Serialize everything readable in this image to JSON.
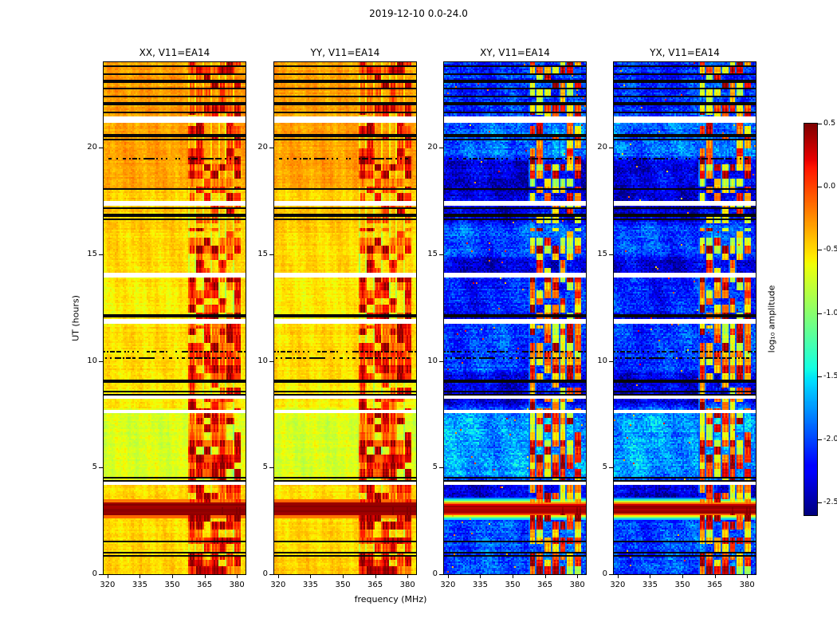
{
  "figure": {
    "title": "2019-12-10 0.0-24.0"
  },
  "chart_data": {
    "type": "heatmap",
    "title": "2019-12-10 0.0-24.0",
    "xlabel": "frequency (MHz)",
    "ylabel": "UT (hours)",
    "x_ticks": [
      320,
      335,
      350,
      365,
      380
    ],
    "y_ticks": [
      0,
      5,
      10,
      15,
      20
    ],
    "x_range": [
      318.2,
      384.0
    ],
    "y_range": [
      0,
      24
    ],
    "grid": false,
    "panels": [
      {
        "id": "xx",
        "title": "XX, V11=EA14",
        "polarization": "XX",
        "group": "parallel",
        "seed": 1
      },
      {
        "id": "yy",
        "title": "YY, V11=EA14",
        "polarization": "YY",
        "group": "parallel",
        "seed": 2
      },
      {
        "id": "xy",
        "title": "XY, V11=EA14",
        "polarization": "XY",
        "group": "cross",
        "seed": 3
      },
      {
        "id": "yx",
        "title": "YX, V11=EA14",
        "polarization": "YX",
        "group": "cross",
        "seed": 4
      }
    ],
    "colorbar": {
      "label": "log₁₀ amplitude",
      "ticks": [
        0.5,
        0.0,
        -0.5,
        -1.0,
        -1.5,
        -2.0,
        -2.5
      ],
      "range": [
        -2.6,
        0.5
      ],
      "colormap": "jet"
    },
    "features": {
      "rfi_band_mhz": [
        357.5,
        382.0
      ],
      "rfi_subband_mhz": 3.5,
      "event_hours": [
        2.75,
        3.35
      ],
      "parallel_base_log_amp": -0.5,
      "cross_base_log_amp": -2.35,
      "white_gap_hours": [
        [
          21.15,
          21.45
        ],
        [
          17.3,
          17.5
        ],
        [
          13.9,
          14.1
        ],
        [
          11.75,
          11.95
        ],
        [
          8.2,
          8.35
        ],
        [
          7.55,
          7.7
        ],
        [
          4.15,
          4.3
        ]
      ],
      "flagged_black_hours": [
        [
          23.75,
          23.85
        ],
        [
          23.4,
          23.5
        ],
        [
          23.05,
          23.15
        ],
        [
          22.7,
          22.8
        ],
        [
          22.35,
          22.45
        ],
        [
          22.0,
          22.1
        ],
        [
          21.6,
          21.7
        ],
        [
          20.5,
          20.6
        ],
        [
          20.3,
          20.38
        ],
        [
          18.0,
          18.1
        ],
        [
          17.1,
          17.18
        ],
        [
          16.78,
          16.86
        ],
        [
          16.6,
          16.68
        ],
        [
          12.05,
          12.15
        ],
        [
          9.0,
          9.1
        ],
        [
          8.55,
          8.63
        ],
        [
          8.4,
          8.48
        ],
        [
          4.5,
          4.58
        ],
        [
          4.36,
          4.44
        ],
        [
          1.5,
          1.58
        ],
        [
          0.95,
          1.03
        ],
        [
          0.8,
          0.88
        ]
      ],
      "dashed_flag_hours": [
        10.45,
        10.1,
        19.5
      ]
    }
  }
}
